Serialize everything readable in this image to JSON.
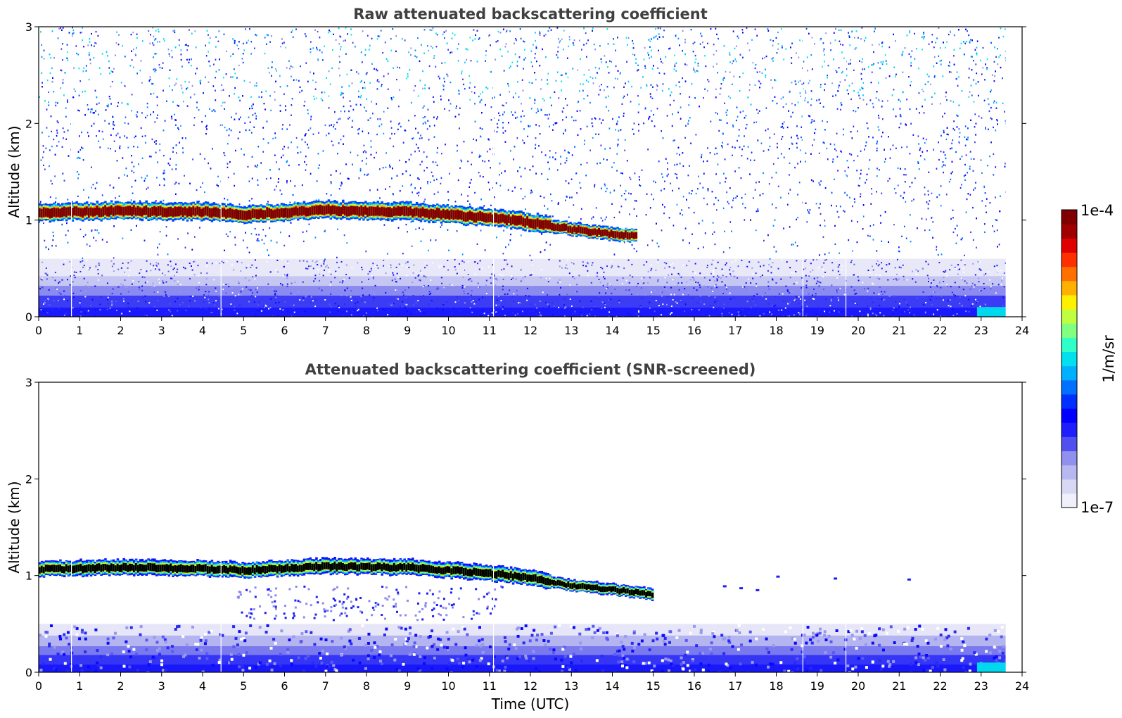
{
  "chart_data": [
    {
      "type": "heatmap",
      "title": "Raw attenuated backscattering coefficient",
      "xlabel": "",
      "ylabel": "Altitude (km)",
      "xlim": [
        0,
        24
      ],
      "ylim": [
        0,
        3
      ],
      "xticks": [
        0,
        1,
        2,
        3,
        4,
        5,
        6,
        7,
        8,
        9,
        10,
        11,
        12,
        13,
        14,
        15,
        16,
        17,
        18,
        19,
        20,
        21,
        22,
        23,
        24
      ],
      "yticks": [
        0,
        1,
        2,
        3
      ],
      "data_end_hour": 23.6,
      "cloud_layer": {
        "description": "dense backscatter layer",
        "time_hours": [
          0,
          2,
          4,
          5,
          7,
          9,
          11,
          12,
          13,
          14,
          14.6
        ],
        "altitude_km": [
          1.07,
          1.09,
          1.08,
          1.05,
          1.1,
          1.08,
          1.02,
          0.97,
          0.9,
          0.85,
          0.83
        ]
      },
      "noisy_above_km": 1.2,
      "boundary_layer_top_km": 0.6
    },
    {
      "type": "heatmap",
      "title": "Attenuated backscattering coefficient (SNR-screened)",
      "xlabel": "Time (UTC)",
      "ylabel": "Altitude (km)",
      "xlim": [
        0,
        24
      ],
      "ylim": [
        0,
        3
      ],
      "xticks": [
        0,
        1,
        2,
        3,
        4,
        5,
        6,
        7,
        8,
        9,
        10,
        11,
        12,
        13,
        14,
        15,
        16,
        17,
        18,
        19,
        20,
        21,
        22,
        23,
        24
      ],
      "yticks": [
        0,
        1,
        2,
        3
      ],
      "data_end_hour": 23.6,
      "cloud_layer": {
        "description": "screened cloud layer (saturated core)",
        "time_hours": [
          0,
          2,
          4,
          5,
          7,
          9,
          11,
          12,
          13,
          14,
          15
        ],
        "altitude_km": [
          1.06,
          1.08,
          1.07,
          1.05,
          1.09,
          1.08,
          1.02,
          0.97,
          0.89,
          0.85,
          0.8
        ]
      },
      "boundary_layer_top_km": 0.5
    }
  ],
  "colorbar": {
    "max_label": "1e-4",
    "min_label": "1e-7",
    "units": "1/m/sr",
    "colors": [
      "#f0f0fb",
      "#d8d8f5",
      "#b8b8f0",
      "#9090ee",
      "#5050f0",
      "#1e1efc",
      "#0000ff",
      "#0030ff",
      "#0070ff",
      "#00b0ff",
      "#00e0ee",
      "#30ffc8",
      "#80ff80",
      "#c0ff40",
      "#fff000",
      "#ffb000",
      "#ff7000",
      "#ff3000",
      "#e00000",
      "#a00000",
      "#800000"
    ]
  }
}
